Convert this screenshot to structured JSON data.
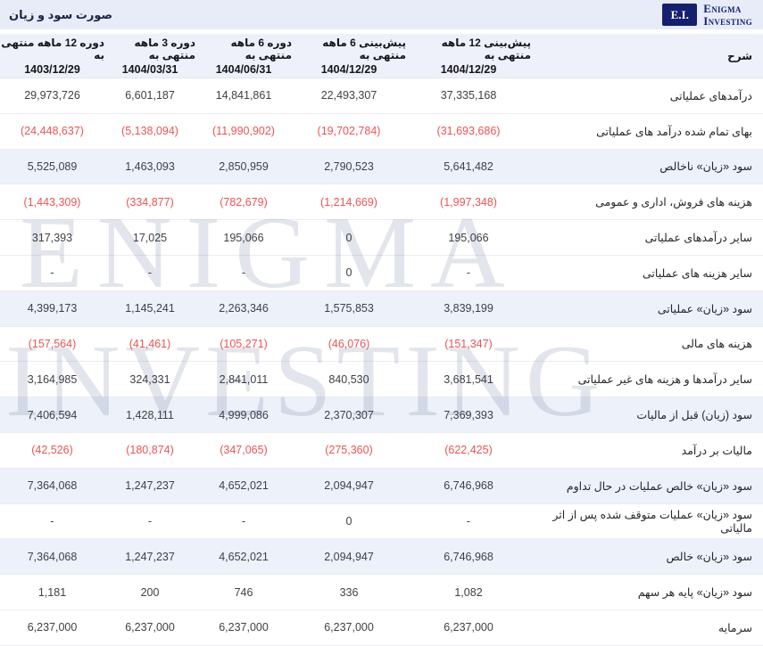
{
  "header": {
    "logo": {
      "abbr": "E.I.",
      "name_line1": "Enigma",
      "name_line2": "Investing"
    },
    "title": "صورت سود و زیان"
  },
  "watermark": {
    "line1": "ENIGMA",
    "line2": "INVESTING"
  },
  "colors": {
    "topbar_bg": "#e7ecf8",
    "header_bg": "#eef1f9",
    "highlight_row_bg": "#edf1fa",
    "navy": "#1c2746",
    "navy_deep": "#151f6e",
    "negative": "#ea5455"
  },
  "table": {
    "desc_header": "شرح",
    "columns": [
      {
        "label": "پیش‌بینی 12 ماهه منتهی به",
        "date": "1404/12/29"
      },
      {
        "label": "پیش‌بینی 6 ماهه منتهی به",
        "date": "1404/12/29"
      },
      {
        "label": "دوره 6 ماهه منتهی به",
        "date": "1404/06/31"
      },
      {
        "label": "دوره 3 ماهه منتهی به",
        "date": "1404/03/31"
      },
      {
        "label": "دوره 12 ماهه منتهی به",
        "date": "1403/12/29"
      }
    ],
    "rows": [
      {
        "label": "درآمدهای عملیاتی",
        "highlight": false,
        "values": [
          "37,335,168",
          "22,493,307",
          "14,841,861",
          "6,601,187",
          "29,973,726"
        ]
      },
      {
        "label": "بهای تمام شده درآمد های عملیاتی",
        "highlight": false,
        "values": [
          "(31,693,686)",
          "(19,702,784)",
          "(11,990,902)",
          "(5,138,094)",
          "(24,448,637)"
        ]
      },
      {
        "label": "سود «زیان» ناخالص",
        "highlight": true,
        "values": [
          "5,641,482",
          "2,790,523",
          "2,850,959",
          "1,463,093",
          "5,525,089"
        ]
      },
      {
        "label": "هزینه های فروش، اداری و عمومی",
        "highlight": false,
        "values": [
          "(1,997,348)",
          "(1,214,669)",
          "(782,679)",
          "(334,877)",
          "(1,443,309)"
        ]
      },
      {
        "label": "سایر درآمدهای عملیاتی",
        "highlight": false,
        "values": [
          "195,066",
          "0",
          "195,066",
          "17,025",
          "317,393"
        ]
      },
      {
        "label": "سایر هزینه های عملیاتی",
        "highlight": false,
        "values": [
          "-",
          "0",
          "-",
          "-",
          "-"
        ]
      },
      {
        "label": "سود «زیان» عملیاتی",
        "highlight": true,
        "values": [
          "3,839,199",
          "1,575,853",
          "2,263,346",
          "1,145,241",
          "4,399,173"
        ]
      },
      {
        "label": "هزینه های مالی",
        "highlight": false,
        "values": [
          "(151,347)",
          "(46,076)",
          "(105,271)",
          "(41,461)",
          "(157,564)"
        ]
      },
      {
        "label": "سایر درآمدها و هزینه های غیر عملیاتی",
        "highlight": false,
        "values": [
          "3,681,541",
          "840,530",
          "2,841,011",
          "324,331",
          "3,164,985"
        ]
      },
      {
        "label": "سود (زیان) قبل از مالیات",
        "highlight": true,
        "values": [
          "7,369,393",
          "2,370,307",
          "4,999,086",
          "1,428,111",
          "7,406,594"
        ]
      },
      {
        "label": "مالیات بر درآمد",
        "highlight": false,
        "values": [
          "(622,425)",
          "(275,360)",
          "(347,065)",
          "(180,874)",
          "(42,526)"
        ]
      },
      {
        "label": "سود «زیان» خالص عملیات در حال تداوم",
        "highlight": true,
        "values": [
          "6,746,968",
          "2,094,947",
          "4,652,021",
          "1,247,237",
          "7,364,068"
        ]
      },
      {
        "label": "سود «زیان» عملیات متوقف شده پس از اثر مالیاتی",
        "highlight": false,
        "values": [
          "-",
          "0",
          "-",
          "-",
          "-"
        ]
      },
      {
        "label": "سود «زیان» خالص",
        "highlight": true,
        "values": [
          "6,746,968",
          "2,094,947",
          "4,652,021",
          "1,247,237",
          "7,364,068"
        ]
      },
      {
        "label": "سود «زیان» پایه هر سهم",
        "highlight": false,
        "values": [
          "1,082",
          "336",
          "746",
          "200",
          "1,181"
        ]
      },
      {
        "label": "سرمایه",
        "highlight": false,
        "values": [
          "6,237,000",
          "6,237,000",
          "6,237,000",
          "6,237,000",
          "6,237,000"
        ]
      }
    ]
  }
}
